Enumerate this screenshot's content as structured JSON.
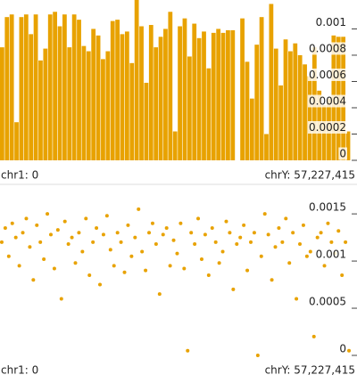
{
  "chart_data": [
    {
      "type": "bar",
      "color": "#e8a200",
      "values": [
        0.00086,
        0.00109,
        0.00111,
        0.00029,
        0.00109,
        0.00111,
        0.00096,
        0.00111,
        0.00076,
        0.00085,
        0.00111,
        0.00113,
        0.00102,
        0.00111,
        0.00086,
        0.00111,
        0.00107,
        0.00087,
        0.00083,
        0.001,
        0.00095,
        0.00077,
        0.00083,
        0.00106,
        0.00107,
        0.00096,
        0.00098,
        0.00074,
        0.00122,
        0.00102,
        0.00059,
        0.00103,
        0.00086,
        0.00094,
        0.001,
        0.00113,
        0.00022,
        0.00102,
        0.00108,
        0.00079,
        0.00104,
        0.00093,
        0.00098,
        0.0007,
        0.00097,
        0.001,
        0.00097,
        0.00099,
        0.00099,
        0,
        0.00108,
        0.00075,
        0.00047,
        0.00088,
        0.00109,
        0.0002,
        0.00119,
        0.00085,
        0.00057,
        0.00092,
        0.00083,
        0.00089,
        0.0008,
        0.00073,
        0.00064,
        0.00086,
        0.00053,
        0.00042,
        0.00047,
        0.00095,
        0.00094,
        0.00094,
        0.00022
      ],
      "ylim": [
        0,
        0.00122
      ],
      "yticks": [
        0,
        0.0002,
        0.0004,
        0.0006,
        0.0008,
        0.001
      ],
      "x_start_label": "chr1: 0",
      "x_end_label": "chrY: 57,227,415"
    },
    {
      "type": "scatter",
      "color": "#e8a200",
      "x": [
        0,
        1,
        2,
        3,
        4,
        5,
        6,
        7,
        8,
        9,
        10,
        11,
        12,
        13,
        14,
        15,
        16,
        17,
        18,
        19,
        20,
        21,
        22,
        23,
        24,
        25,
        26,
        27,
        28,
        29,
        30,
        31,
        32,
        33,
        34,
        35,
        36,
        37,
        38,
        39,
        40,
        41,
        42,
        43,
        44,
        45,
        46,
        47,
        48,
        49,
        50,
        51,
        52,
        53,
        54,
        55,
        56,
        57,
        58,
        59,
        60,
        61,
        62,
        63,
        64,
        65,
        66,
        67,
        68,
        69,
        70,
        71,
        72,
        73,
        74,
        75,
        76,
        77,
        78,
        79,
        80,
        81,
        82,
        83,
        84,
        85,
        86,
        87,
        88,
        89,
        90,
        91,
        92,
        93,
        94,
        95,
        96,
        97,
        98,
        99
      ],
      "values": [
        0.0012,
        0.00135,
        0.00105,
        0.0014,
        0.00125,
        0.00095,
        0.0013,
        0.00145,
        0.00115,
        0.0008,
        0.00138,
        0.0012,
        0.00102,
        0.0015,
        0.00128,
        0.00092,
        0.00133,
        0.0006,
        0.00142,
        0.00118,
        0.00125,
        0.00098,
        0.0013,
        0.0011,
        0.00145,
        0.00085,
        0.0012,
        0.00135,
        0.00075,
        0.00128,
        0.00148,
        0.00112,
        0.00095,
        0.0013,
        0.0012,
        0.00088,
        0.00138,
        0.00105,
        0.00125,
        0.00155,
        0.0011,
        0.0009,
        0.0013,
        0.0014,
        0.00118,
        0.00065,
        0.00128,
        0.00135,
        0.00095,
        0.00122,
        0.00108,
        0.0014,
        0.00092,
        5e-05,
        0.0013,
        0.00118,
        0.00145,
        0.00102,
        0.00128,
        0.00085,
        0.00135,
        0.0012,
        0.00098,
        0.0011,
        0.00142,
        0.0013,
        0.0007,
        0.00118,
        0.00125,
        0.00138,
        0.0009,
        0.0012,
        0.0013,
        0,
        0.00105,
        0.0015,
        0.00128,
        0.0008,
        0.00115,
        0.00135,
        0.0012,
        0.00145,
        0.00098,
        0.0013,
        0.0006,
        0.00118,
        0.00138,
        0.00105,
        0.0011,
        0.0002,
        0.00125,
        0.0013,
        0.00095,
        0.0014,
        0.0012,
        0.00108,
        0.00132,
        0.00085,
        0.0012,
        5e-05
      ],
      "xlim": [
        -0.5,
        99.5
      ],
      "ylim": [
        0,
        0.00169
      ],
      "yticks": [
        0,
        0.0005,
        0.001,
        0.0015
      ],
      "x_start_label": "chr1: 0",
      "x_end_label": "chrY: 57,227,415"
    }
  ]
}
